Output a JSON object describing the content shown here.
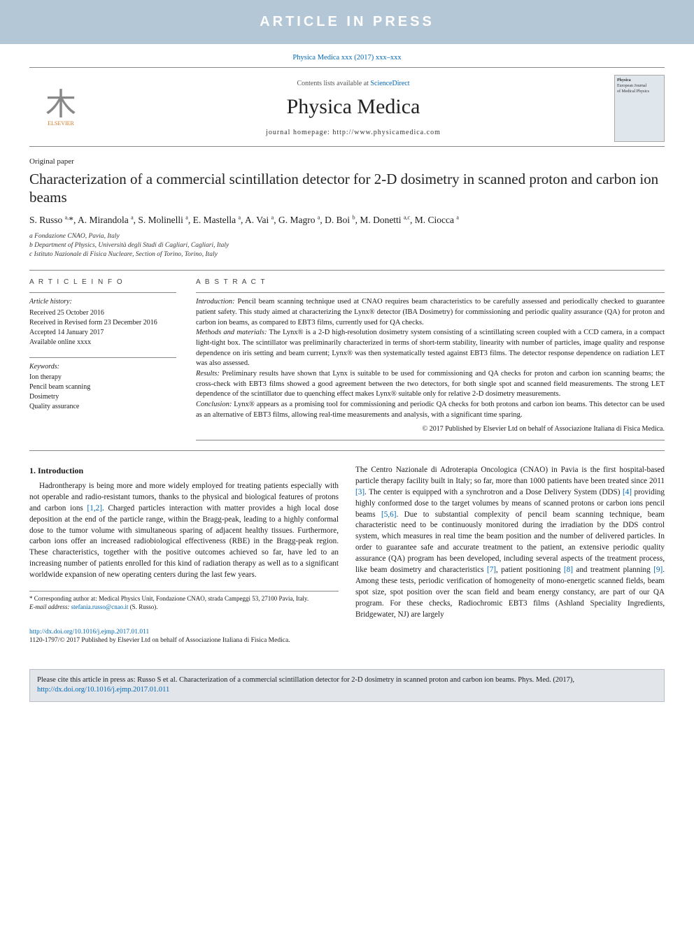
{
  "banner": {
    "text": "ARTICLE IN PRESS"
  },
  "citation": {
    "text": "Physica Medica xxx (2017) xxx–xxx"
  },
  "header": {
    "contents_prefix": "Contents lists available at ",
    "contents_link": "ScienceDirect",
    "journal_title": "Physica Medica",
    "homepage_prefix": "journal homepage: ",
    "homepage_url": "http://www.physicamedica.com",
    "publisher": "ELSEVIER",
    "cover_line1": "Physica",
    "cover_line2": "European Journal",
    "cover_line3": "of Medical Physics"
  },
  "paper": {
    "type": "Original paper",
    "title": "Characterization of a commercial scintillation detector for 2-D dosimetry in scanned proton and carbon ion beams",
    "authors_html": "S. Russo <sup>a,</sup>*, A. Mirandola <sup>a</sup>, S. Molinelli <sup>a</sup>, E. Mastella <sup>a</sup>, A. Vai <sup>a</sup>, G. Magro <sup>a</sup>, D. Boi <sup>b</sup>, M. Donetti <sup>a,c</sup>, M. Ciocca <sup>a</sup>",
    "affiliations": [
      "a Fondazione CNAO, Pavia, Italy",
      "b Department of Physics, Università degli Studi di Cagliari, Cagliari, Italy",
      "c Istituto Nazionale di Fisica Nucleare, Section of Torino, Torino, Italy"
    ]
  },
  "article_info": {
    "heading": "A R T I C L E   I N F O",
    "history_label": "Article history:",
    "history": [
      "Received 25 October 2016",
      "Received in Revised form 23 December 2016",
      "Accepted 14 January 2017",
      "Available online xxxx"
    ],
    "keywords_label": "Keywords:",
    "keywords": [
      "Ion therapy",
      "Pencil beam scanning",
      "Dosimetry",
      "Quality assurance"
    ]
  },
  "abstract": {
    "heading": "A B S T R A C T",
    "sections": {
      "intro_label": "Introduction:",
      "intro": " Pencil beam scanning technique used at CNAO requires beam characteristics to be carefully assessed and periodically checked to guarantee patient safety. This study aimed at characterizing the Lynx® detector (IBA Dosimetry) for commissioning and periodic quality assurance (QA) for proton and carbon ion beams, as compared to EBT3 films, currently used for QA checks.",
      "methods_label": "Methods and materials:",
      "methods": " The Lynx® is a 2-D high-resolution dosimetry system consisting of a scintillating screen coupled with a CCD camera, in a compact light-tight box. The scintillator was preliminarily characterized in terms of short-term stability, linearity with number of particles, image quality and response dependence on iris setting and beam current; Lynx® was then systematically tested against EBT3 films. The detector response dependence on radiation LET was also assessed.",
      "results_label": "Results:",
      "results": " Preliminary results have shown that Lynx is suitable to be used for commissioning and QA checks for proton and carbon ion scanning beams; the cross-check with EBT3 films showed a good agreement between the two detectors, for both single spot and scanned field measurements. The strong LET dependence of the scintillator due to quenching effect makes Lynx® suitable only for relative 2-D dosimetry measurements.",
      "conclusion_label": "Conclusion:",
      "conclusion": " Lynx® appears as a promising tool for commissioning and periodic QA checks for both protons and carbon ion beams. This detector can be used as an alternative of EBT3 films, allowing real-time measurements and analysis, with a significant time sparing."
    },
    "copyright": "© 2017 Published by Elsevier Ltd on behalf of Associazione Italiana di Fisica Medica."
  },
  "body": {
    "intro_heading": "1. Introduction",
    "col1": "Hadrontherapy is being more and more widely employed for treating patients especially with not operable and radio-resistant tumors, thanks to the physical and biological features of protons and carbon ions [1,2]. Charged particles interaction with matter provides a high local dose deposition at the end of the particle range, within the Bragg-peak, leading to a highly conformal dose to the tumor volume with simultaneous sparing of adjacent healthy tissues. Furthermore, carbon ions offer an increased radiobiological effectiveness (RBE) in the Bragg-peak region. These characteristics, together with the positive outcomes achieved so far, have led to an increasing number of patients enrolled for this kind of radiation therapy as well as to a significant worldwide expansion of new operating centers during the last few years.",
    "col2": "The Centro Nazionale di Adroterapia Oncologica (CNAO) in Pavia is the first hospital-based particle therapy facility built in Italy; so far, more than 1000 patients have been treated since 2011 [3]. The center is equipped with a synchrotron and a Dose Delivery System (DDS) [4] providing highly conformed dose to the target volumes by means of scanned protons or carbon ions pencil beams [5,6]. Due to substantial complexity of pencil beam scanning technique, beam characteristic need to be continuously monitored during the irradiation by the DDS control system, which measures in real time the beam position and the number of delivered particles. In order to guarantee safe and accurate treatment to the patient, an extensive periodic quality assurance (QA) program has been developed, including several aspects of the treatment process, like beam dosimetry and characteristics [7], patient positioning [8] and treatment planning [9]. Among these tests, periodic verification of homogeneity of mono-energetic scanned fields, beam spot size, spot position over the scan field and beam energy constancy, are part of our QA program. For these checks, Radiochromic EBT3 films (Ashland Speciality Ingredients, Bridgewater, NJ) are largely",
    "cites": {
      "c12": "[1,2]",
      "c3": "[3]",
      "c4": "[4]",
      "c56": "[5,6]",
      "c7": "[7]",
      "c8": "[8]",
      "c9": "[9]"
    }
  },
  "footnotes": {
    "corr": "* Corresponding author at: Medical Physics Unit, Fondazione CNAO, strada Campeggi 53, 27100 Pavia, Italy.",
    "email_label": "E-mail address: ",
    "email": "stefania.russo@cnao.it",
    "email_suffix": " (S. Russo)."
  },
  "doi": {
    "url": "http://dx.doi.org/10.1016/j.ejmp.2017.01.011",
    "issn_line": "1120-1797/© 2017 Published by Elsevier Ltd on behalf of Associazione Italiana di Fisica Medica."
  },
  "citebox": {
    "prefix": "Please cite this article in press as: Russo S et al. Characterization of a commercial scintillation detector for 2-D dosimetry in scanned proton and carbon ion beams. Phys. Med. (2017), ",
    "url": "http://dx.doi.org/10.1016/j.ejmp.2017.01.011"
  },
  "colors": {
    "banner_bg": "#b4c7d6",
    "banner_text": "#ffffff",
    "link": "#0066b3",
    "rule": "#888888",
    "citebox_bg": "#e2e6ea",
    "citebox_border": "#b8bec4",
    "elsevier_orange": "#d97820"
  }
}
